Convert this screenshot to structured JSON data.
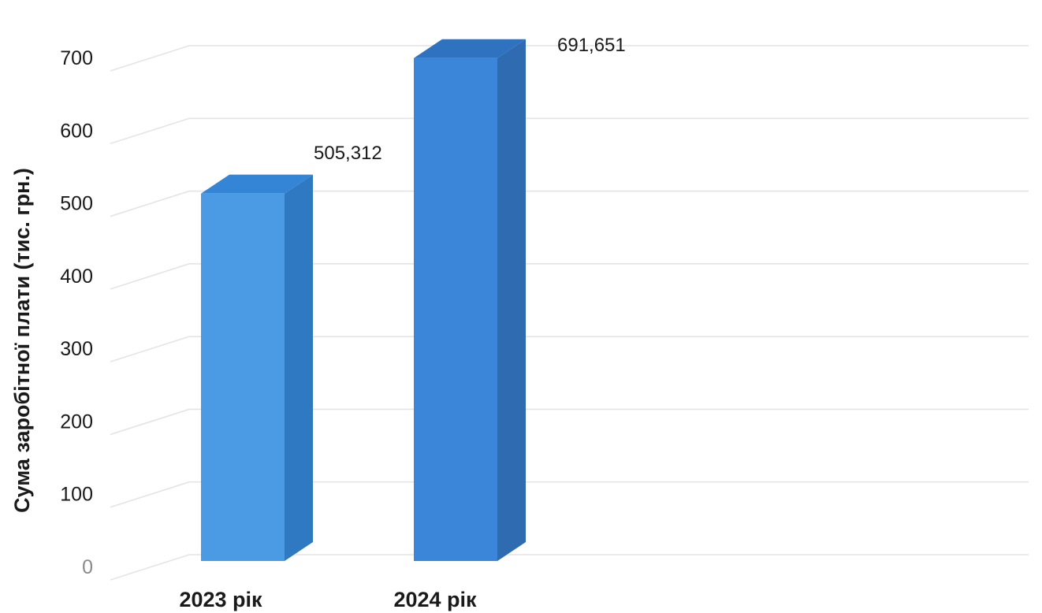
{
  "chart_data": {
    "type": "bar",
    "title": "",
    "xlabel": "",
    "ylabel": "Сума заробітної плати (тис. грн.)",
    "categories": [
      "2023 рік",
      "2024 рік"
    ],
    "values": [
      505.312,
      691.651
    ],
    "value_labels": [
      "505,312",
      "691,651"
    ],
    "ylim": [
      0,
      700
    ],
    "yticks": [
      0,
      100,
      200,
      300,
      400,
      500,
      600,
      700
    ],
    "grid": true,
    "legend": "none",
    "style": "3d-column",
    "colors": {
      "front": [
        "#4a9be3",
        "#3b86d9"
      ],
      "side": [
        "#2f78c2",
        "#2e6bb0"
      ],
      "top": [
        "#3585d6",
        "#2f72c0"
      ],
      "grid": "#e4e4e4"
    }
  }
}
